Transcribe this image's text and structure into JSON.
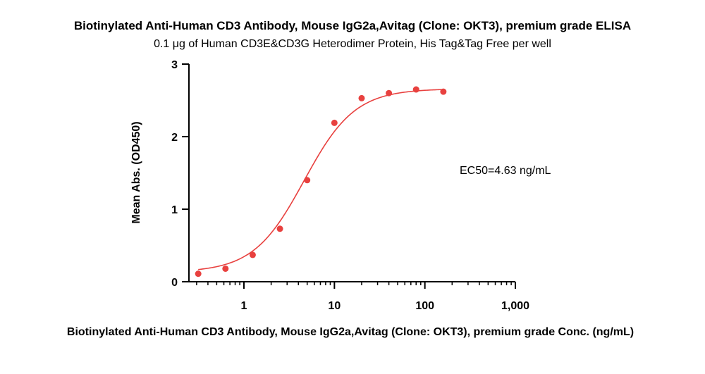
{
  "chart_data": {
    "type": "scatter",
    "title": "Biotinylated Anti-Human CD3 Antibody, Mouse IgG2a,Avitag (Clone: OKT3), premium grade ELISA",
    "subtitle": "0.1 μg of Human CD3E&CD3G Heterodimer Protein, His Tag&Tag Free per well",
    "xlabel": "Biotinylated Anti-Human CD3 Antibody, Mouse IgG2a,Avitag (Clone: OKT3), premium grade Conc. (ng/mL)",
    "ylabel": "Mean Abs. (OD450)",
    "x_scale": "log",
    "xlim": [
      0.25,
      1000
    ],
    "ylim": [
      0,
      3
    ],
    "x_ticks": [
      1,
      10,
      100,
      1000
    ],
    "x_tick_labels": [
      "1",
      "10",
      "100",
      "1,000"
    ],
    "y_ticks": [
      0,
      1,
      2,
      3
    ],
    "y_tick_labels": [
      "0",
      "1",
      "2",
      "3"
    ],
    "grid": false,
    "legend": "none",
    "series": [
      {
        "color": "#e8413f",
        "x": [
          0.3125,
          0.625,
          1.25,
          2.5,
          5,
          10,
          20,
          40,
          80,
          160
        ],
        "y": [
          0.11,
          0.18,
          0.37,
          0.73,
          1.4,
          2.19,
          2.53,
          2.6,
          2.65,
          2.62
        ]
      }
    ],
    "fit_curve": {
      "model": "4PL",
      "bottom": 0.13,
      "top": 2.66,
      "ec50": 4.63,
      "hill": 1.55,
      "color": "#e8413f"
    },
    "annotation": "EC50=4.63 ng/mL"
  }
}
